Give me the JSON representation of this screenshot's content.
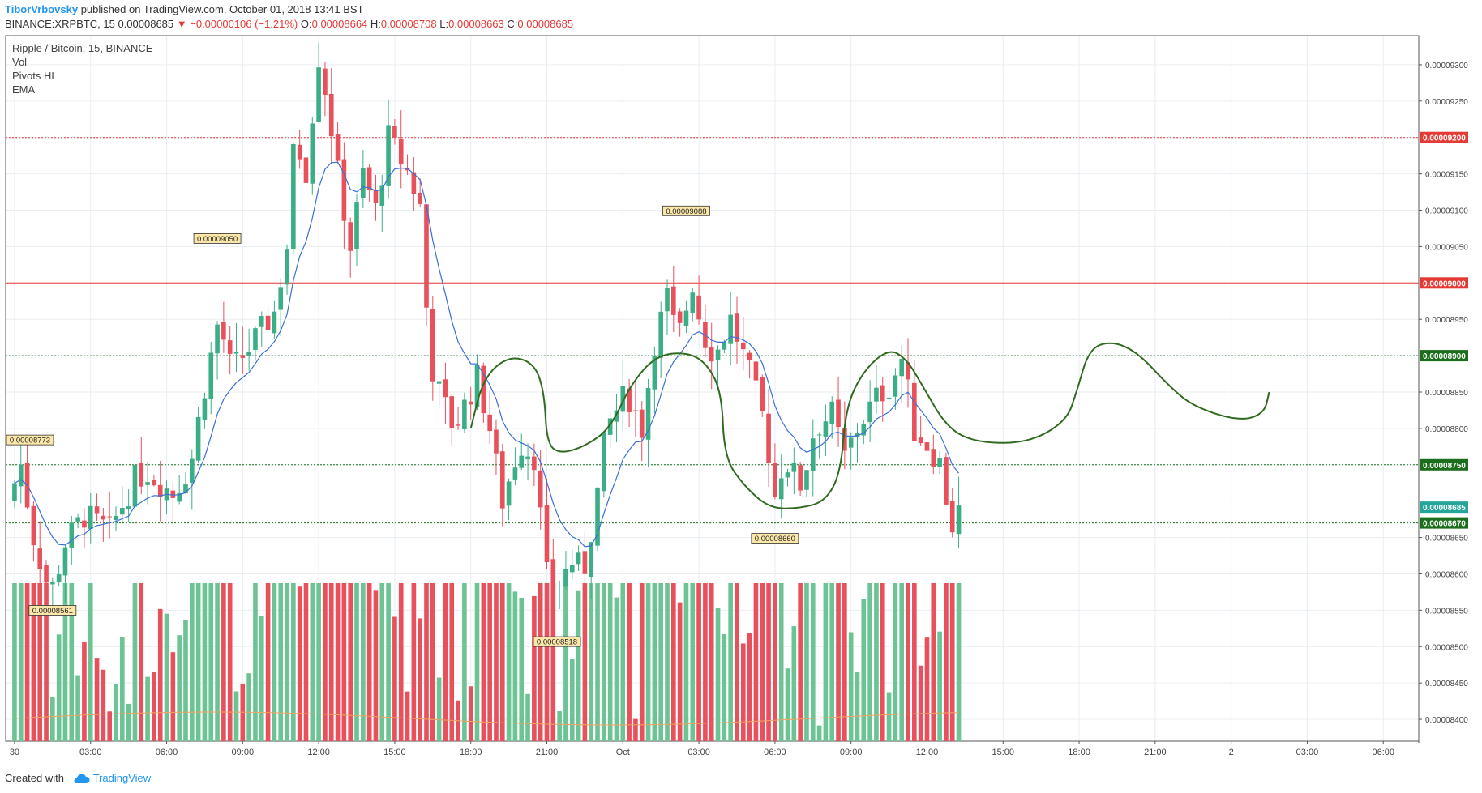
{
  "header": {
    "author": "TiborVrbovsky",
    "published": "published on TradingView.com, October 01, 2018 13:41 BST",
    "symbol": "BINANCE:XRPBTC, 15",
    "last": "0.00008685",
    "change": "▼ −0.00000106 (−1.21%)",
    "o_label": "O:",
    "o_value": "0.00008664",
    "h_label": "H:",
    "h_value": "0.00008708",
    "l_label": "L:",
    "l_value": "0.00008663",
    "c_label": "C:",
    "c_value": "0.00008685"
  },
  "legend": {
    "title": "Ripple / Bitcoin, 15, BINANCE",
    "items": [
      "Vol",
      "Pivots HL",
      "EMA"
    ]
  },
  "footer": {
    "created_with": "Created with",
    "brand": "TradingView"
  },
  "colors": {
    "up": "#3cae85",
    "down": "#e8505b",
    "vol_up": "#6cc394",
    "vol_down": "#e8505b",
    "ema": "#3a6fd8",
    "vol_ma": "#f4a261",
    "red_line": "#e53935",
    "green_line": "#1b6e1b",
    "drawing": "#2f6a1f",
    "last_price": "#26a69a",
    "grid": "#e9eef2"
  },
  "chart_data": {
    "type": "candlestick",
    "title": "Ripple / Bitcoin, 15, BINANCE",
    "ylim": [
      8.37e-05,
      9.34e-05
    ],
    "y_ticks": [
      "0.00008400",
      "0.00008450",
      "0.00008500",
      "0.00008550",
      "0.00008600",
      "0.00008650",
      "0.00008700",
      "0.00008750",
      "0.00008800",
      "0.00008850",
      "0.00008900",
      "0.00008950",
      "0.00009000",
      "0.00009050",
      "0.00009100",
      "0.00009150",
      "0.00009200",
      "0.00009250",
      "0.00009300"
    ],
    "x_ticks": [
      "30",
      "03:00",
      "06:00",
      "09:00",
      "12:00",
      "15:00",
      "18:00",
      "21:00",
      "Oct",
      "03:00",
      "06:00",
      "09:00",
      "12:00",
      "15:00",
      "18:00",
      "21:00",
      "2",
      "03:00",
      "06:00"
    ],
    "x_tick_hours": [
      0,
      3,
      6,
      9,
      12,
      15,
      18,
      21,
      24,
      27,
      30,
      33,
      36,
      39,
      42,
      45,
      48,
      51,
      54
    ],
    "x_range_hours": [
      -0.35,
      55.4
    ],
    "bar_hours": 0.25,
    "anchors": [
      [
        0.0,
        8.7e-05
      ],
      [
        0.5,
        8.75e-05
      ],
      [
        1.0,
        8.65e-05
      ],
      [
        1.5,
        8.59e-05
      ],
      [
        1.8,
        8.58e-05
      ],
      [
        2.2,
        8.64e-05
      ],
      [
        3.0,
        8.68e-05
      ],
      [
        4.0,
        8.66e-05
      ],
      [
        5.0,
        8.73e-05
      ],
      [
        5.5,
        8.74e-05
      ],
      [
        6.5,
        8.71e-05
      ],
      [
        7.2,
        8.75e-05
      ],
      [
        7.7,
        8.85e-05
      ],
      [
        8.3,
        8.95e-05
      ],
      [
        8.8,
        8.88e-05
      ],
      [
        9.5,
        8.91e-05
      ],
      [
        10.5,
        8.96e-05
      ],
      [
        11.0,
        9.05e-05
      ],
      [
        11.3,
        9.2e-05
      ],
      [
        11.8,
        9.15e-05
      ],
      [
        12.2,
        9.32e-05
      ],
      [
        12.6,
        9.25e-05
      ],
      [
        13.0,
        9.15e-05
      ],
      [
        13.5,
        9.05e-05
      ],
      [
        14.0,
        9.15e-05
      ],
      [
        14.5,
        9.1e-05
      ],
      [
        15.0,
        9.2e-05
      ],
      [
        15.8,
        9.15e-05
      ],
      [
        16.3,
        9.1e-05
      ],
      [
        16.6,
        8.9e-05
      ],
      [
        17.0,
        8.85e-05
      ],
      [
        17.6,
        8.8e-05
      ],
      [
        18.5,
        8.87e-05
      ],
      [
        19.0,
        8.8e-05
      ],
      [
        19.5,
        8.7e-05
      ],
      [
        20.2,
        8.78e-05
      ],
      [
        20.8,
        8.76e-05
      ],
      [
        21.2,
        8.6e-05
      ],
      [
        21.6,
        8.58e-05
      ],
      [
        22.3,
        8.62e-05
      ],
      [
        22.7,
        8.6e-05
      ],
      [
        23.2,
        8.7e-05
      ],
      [
        23.6,
        8.8e-05
      ],
      [
        24.4,
        8.85e-05
      ],
      [
        25.0,
        8.8e-05
      ],
      [
        25.5,
        8.92e-05
      ],
      [
        26.0,
        8.98e-05
      ],
      [
        26.4,
        8.92e-05
      ],
      [
        27.0,
        9e-05
      ],
      [
        27.4,
        8.93e-05
      ],
      [
        27.9,
        8.9e-05
      ],
      [
        28.5,
        8.95e-05
      ],
      [
        29.3,
        8.87e-05
      ],
      [
        29.9,
        8.8e-05
      ],
      [
        30.2,
        8.7e-05
      ],
      [
        30.6,
        8.76e-05
      ],
      [
        31.3,
        8.72e-05
      ],
      [
        31.8,
        8.8e-05
      ],
      [
        32.5,
        8.82e-05
      ],
      [
        33.0,
        8.76e-05
      ],
      [
        33.5,
        8.8e-05
      ],
      [
        34.2,
        8.84e-05
      ],
      [
        34.8,
        8.86e-05
      ],
      [
        35.3,
        8.9e-05
      ],
      [
        35.7,
        8.8e-05
      ],
      [
        36.2,
        8.78e-05
      ],
      [
        36.8,
        8.75e-05
      ],
      [
        37.2,
        8.66e-05
      ],
      [
        37.4,
        8.685e-05
      ]
    ],
    "pivots": [
      {
        "label": "0.00008773",
        "hour": -0.3,
        "value": 8.773e-05,
        "type": "high"
      },
      {
        "label": "0.00008561",
        "hour": 1.5,
        "value": 8.561e-05,
        "type": "low"
      },
      {
        "label": "0.00009050",
        "hour": 8.0,
        "value": 9.05e-05,
        "type": "high"
      },
      {
        "label": "0.00008518",
        "hour": 21.4,
        "value": 8.518e-05,
        "type": "low"
      },
      {
        "label": "0.00009088",
        "hour": 26.5,
        "value": 9.088e-05,
        "type": "high"
      },
      {
        "label": "0.00008660",
        "hour": 30.0,
        "value": 8.66e-05,
        "type": "low"
      }
    ],
    "price_lines": [
      {
        "label": "0.00009200",
        "value": 9.2e-05,
        "style": "red-dotted"
      },
      {
        "label": "0.00009000",
        "value": 9e-05,
        "style": "red-solid"
      },
      {
        "label": "0.00008900",
        "value": 8.9e-05,
        "style": "green-dotted"
      },
      {
        "label": "0.00008750",
        "value": 8.75e-05,
        "style": "green-dotted"
      },
      {
        "label": "0.00008670",
        "value": 8.67e-05,
        "style": "green-dotted"
      }
    ],
    "last_price": {
      "label": "0.00008685",
      "value": 8.685e-05
    },
    "drawing_path": [
      [
        18.0,
        8.8e-05
      ],
      [
        18.5,
        8.87e-05
      ],
      [
        19.5,
        8.9e-05
      ],
      [
        20.5,
        8.89e-05
      ],
      [
        20.9,
        8.85e-05
      ],
      [
        21.0,
        8.78e-05
      ],
      [
        21.5,
        8.765e-05
      ],
      [
        22.5,
        8.775e-05
      ],
      [
        23.5,
        8.8e-05
      ],
      [
        24.3,
        8.86e-05
      ],
      [
        25.3,
        8.9e-05
      ],
      [
        26.5,
        8.905e-05
      ],
      [
        27.3,
        8.89e-05
      ],
      [
        27.9,
        8.85e-05
      ],
      [
        28.0,
        8.76e-05
      ],
      [
        28.8,
        8.72e-05
      ],
      [
        29.8,
        8.69e-05
      ],
      [
        31.0,
        8.69e-05
      ],
      [
        32.0,
        8.7e-05
      ],
      [
        32.6,
        8.74e-05
      ],
      [
        32.8,
        8.83e-05
      ],
      [
        33.5,
        8.88e-05
      ],
      [
        34.5,
        8.91e-05
      ],
      [
        35.2,
        8.895e-05
      ],
      [
        35.8,
        8.86e-05
      ],
      [
        36.8,
        8.8e-05
      ],
      [
        38.0,
        8.78e-05
      ],
      [
        40.0,
        8.78e-05
      ],
      [
        41.5,
        8.81e-05
      ],
      [
        41.9,
        8.85e-05
      ],
      [
        42.4,
        8.91e-05
      ],
      [
        43.3,
        8.92e-05
      ],
      [
        44.3,
        8.905e-05
      ],
      [
        45.5,
        8.86e-05
      ],
      [
        46.5,
        8.83e-05
      ],
      [
        48.3,
        8.81e-05
      ],
      [
        49.3,
        8.82e-05
      ],
      [
        49.5,
        8.85e-05
      ]
    ]
  }
}
